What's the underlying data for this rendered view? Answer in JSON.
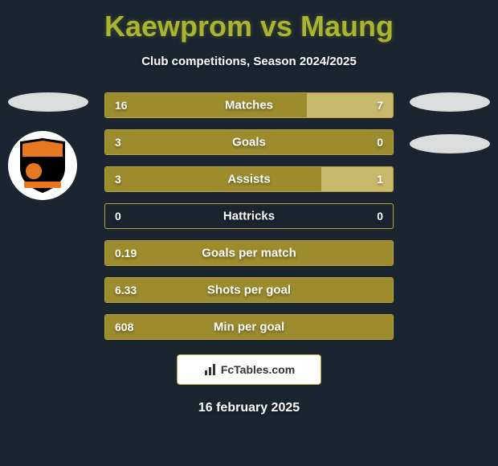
{
  "title": "Kaewprom vs Maung",
  "subtitle": "Club competitions, Season 2024/2025",
  "date": "16 february 2025",
  "footer_brand": "FcTables.com",
  "colors": {
    "background": "#1a2530",
    "title": "#aab42e",
    "text": "#ffffff",
    "bar_left": "#9c8c2e",
    "bar_right": "#c9b96b",
    "bar_border": "#b8a03a",
    "ellipse": "#dcdcdc",
    "footer_bg": "#ffffff"
  },
  "crest": {
    "bg": "#ffffff",
    "shield_border": "#000000",
    "shield_top": "#e87722",
    "shield_bottom": "#000000",
    "banner": "#e87722"
  },
  "bar_total_width": 360,
  "rows": [
    {
      "label": "Matches",
      "left": "16",
      "right": "7",
      "left_pct": 70,
      "right_pct": 30
    },
    {
      "label": "Goals",
      "left": "3",
      "right": "0",
      "left_pct": 100,
      "right_pct": 0
    },
    {
      "label": "Assists",
      "left": "3",
      "right": "1",
      "left_pct": 75,
      "right_pct": 25
    },
    {
      "label": "Hattricks",
      "left": "0",
      "right": "0",
      "left_pct": 0,
      "right_pct": 0
    },
    {
      "label": "Goals per match",
      "left": "0.19",
      "right": "",
      "left_pct": 100,
      "right_pct": 0
    },
    {
      "label": "Shots per goal",
      "left": "6.33",
      "right": "",
      "left_pct": 100,
      "right_pct": 0
    },
    {
      "label": "Min per goal",
      "left": "608",
      "right": "",
      "left_pct": 100,
      "right_pct": 0
    }
  ]
}
